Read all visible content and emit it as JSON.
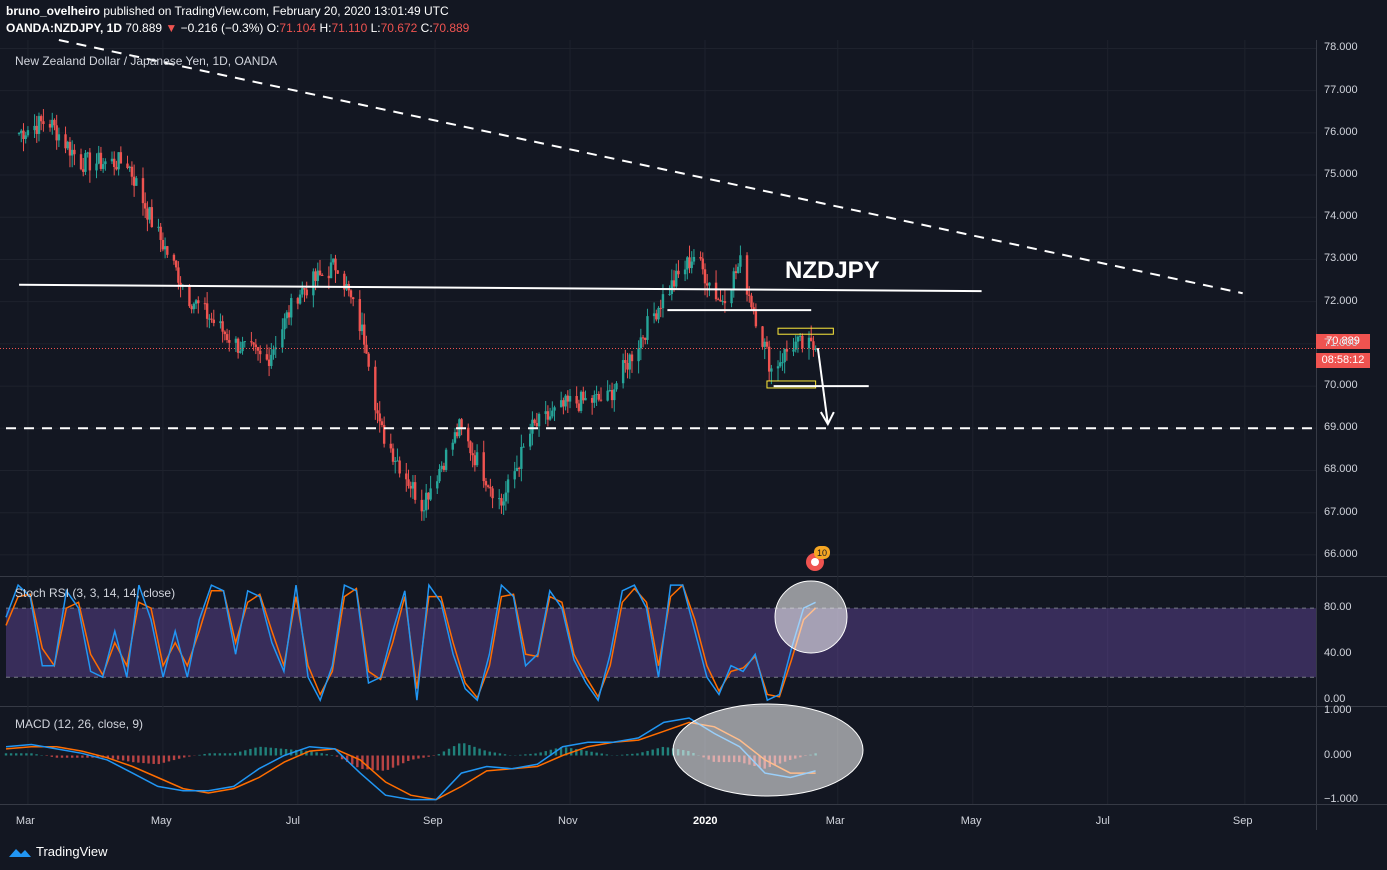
{
  "header": {
    "author": "bruno_ovelheiro",
    "published": "published on TradingView.com, February 20, 2020 13:01:49 UTC",
    "symbol": "OANDA:NZDJPY, 1D",
    "last": "70.889",
    "arrow": "▼",
    "change": "−0.216 (−0.3%)",
    "o_label": "O:",
    "o": "71.104",
    "h_label": "H:",
    "h": "71.110",
    "l_label": "L:",
    "l": "70.672",
    "c_label": "C:",
    "c": "70.889"
  },
  "main_title": "New Zealand Dollar / Japanese Yen, 1D, OANDA",
  "annotation": "NZDJPY",
  "price_tag": "70.889",
  "countdown_tag": "08:58:12",
  "event_badge": "10",
  "stoch_title": "Stoch RSI (3, 3, 14, 14, close)",
  "macd_title": "MACD (12, 26, close, 9)",
  "brand": "TradingView",
  "colors": {
    "bg": "#131722",
    "up": "#26a69a",
    "down": "#ef5350",
    "stoch_k": "#2196f3",
    "stoch_d": "#ff6d00",
    "stoch_band": "#7e57c2"
  },
  "chart_data": [
    {
      "type": "candlestick",
      "title": "New Zealand Dollar / Japanese Yen, 1D, OANDA",
      "ylim": [
        65.5,
        78.2
      ],
      "y_ticks": [
        "78.000",
        "77.000",
        "76.000",
        "75.000",
        "74.000",
        "73.000",
        "72.000",
        "71.000",
        "70.000",
        "69.000",
        "68.000",
        "67.000",
        "66.000"
      ],
      "x_ticks": [
        "Mar",
        "May",
        "Jul",
        "Sep",
        "Nov",
        "2020",
        "Mar",
        "May",
        "Jul",
        "Sep"
      ],
      "approx_daily_closes": [
        {
          "date": "2019-02-25",
          "value": 76.0
        },
        {
          "date": "2019-03-10",
          "value": 76.3
        },
        {
          "date": "2019-03-25",
          "value": 75.3
        },
        {
          "date": "2019-04-15",
          "value": 75.3
        },
        {
          "date": "2019-04-26",
          "value": 73.9
        },
        {
          "date": "2019-05-13",
          "value": 72.1
        },
        {
          "date": "2019-06-03",
          "value": 71.0
        },
        {
          "date": "2019-06-17",
          "value": 70.6
        },
        {
          "date": "2019-07-01",
          "value": 72.2
        },
        {
          "date": "2019-07-19",
          "value": 72.9
        },
        {
          "date": "2019-08-01",
          "value": 71.0
        },
        {
          "date": "2019-08-07",
          "value": 69.0
        },
        {
          "date": "2019-08-26",
          "value": 67.2
        },
        {
          "date": "2019-09-12",
          "value": 69.0
        },
        {
          "date": "2019-10-01",
          "value": 67.2
        },
        {
          "date": "2019-10-15",
          "value": 69.0
        },
        {
          "date": "2019-11-01",
          "value": 69.6
        },
        {
          "date": "2019-11-18",
          "value": 69.7
        },
        {
          "date": "2019-12-13",
          "value": 72.1
        },
        {
          "date": "2019-12-27",
          "value": 73.1
        },
        {
          "date": "2020-01-08",
          "value": 72.0
        },
        {
          "date": "2020-01-17",
          "value": 72.9
        },
        {
          "date": "2020-01-31",
          "value": 70.4
        },
        {
          "date": "2020-02-10",
          "value": 71.0
        },
        {
          "date": "2020-02-20",
          "value": 70.889
        }
      ],
      "annotations": [
        {
          "kind": "horizontal_dashed",
          "price": 69.0
        },
        {
          "kind": "descending_dashed_trendline",
          "from": {
            "date": "2019-03-15",
            "value": 78.2
          },
          "to": {
            "date": "2020-08-31",
            "value": 72.2
          }
        },
        {
          "kind": "trendline",
          "from": {
            "date": "2019-02-25",
            "value": 72.4
          },
          "to": {
            "date": "2020-05-05",
            "value": 72.25
          }
        },
        {
          "kind": "horizontal",
          "price": 71.8
        },
        {
          "kind": "box_range",
          "top": 71.3,
          "bottom": 70.05
        },
        {
          "kind": "arrow",
          "from": 70.9,
          "to": 69.1
        },
        {
          "kind": "last_price_line",
          "price": 70.889
        }
      ]
    },
    {
      "type": "line",
      "title": "Stoch RSI (3, 3, 14, 14, close)",
      "ylim": [
        -5,
        107
      ],
      "y_ticks": [
        "80.00",
        "40.00",
        "0.00"
      ],
      "bands": [
        80,
        20
      ],
      "series": [
        {
          "name": "K",
          "values": [
            72,
            100,
            90,
            30,
            30,
            95,
            80,
            25,
            20,
            60,
            20,
            100,
            70,
            20,
            60,
            20,
            70,
            100,
            95,
            40,
            95,
            90,
            50,
            25,
            100,
            20,
            0,
            30,
            100,
            95,
            15,
            20,
            60,
            95,
            0,
            100,
            85,
            40,
            10,
            0,
            40,
            100,
            90,
            30,
            40,
            95,
            80,
            35,
            15,
            0,
            40,
            95,
            100,
            80,
            20,
            100,
            100,
            60,
            20,
            5,
            30,
            25,
            40,
            0,
            5,
            45,
            80,
            85
          ]
        },
        {
          "name": "D",
          "values": [
            65,
            90,
            92,
            45,
            30,
            80,
            85,
            40,
            22,
            50,
            30,
            85,
            80,
            30,
            50,
            30,
            60,
            95,
            95,
            50,
            85,
            92,
            60,
            30,
            90,
            30,
            5,
            25,
            90,
            97,
            25,
            18,
            50,
            90,
            10,
            90,
            90,
            50,
            15,
            2,
            30,
            90,
            92,
            40,
            38,
            90,
            85,
            40,
            20,
            3,
            30,
            85,
            97,
            85,
            30,
            90,
            100,
            70,
            30,
            8,
            25,
            28,
            38,
            5,
            3,
            35,
            70,
            80
          ]
        }
      ]
    },
    {
      "type": "line",
      "title": "MACD (12, 26, close, 9)",
      "ylim": [
        -1.1,
        1.1
      ],
      "y_ticks": [
        "1.000",
        "0.000",
        "−1.000"
      ],
      "series": [
        {
          "name": "MACD",
          "values": [
            0.2,
            0.25,
            0.15,
            0.05,
            -0.1,
            -0.4,
            -0.7,
            -0.8,
            -0.8,
            -0.7,
            -0.3,
            0.0,
            0.2,
            0.15,
            -0.4,
            -0.9,
            -1.0,
            -1.0,
            -0.4,
            -0.25,
            -0.3,
            -0.2,
            0.2,
            0.3,
            0.3,
            0.4,
            0.75,
            0.85,
            0.5,
            0.2,
            -0.4,
            -0.5,
            -0.35
          ]
        },
        {
          "name": "Signal",
          "values": [
            0.15,
            0.2,
            0.2,
            0.1,
            -0.05,
            -0.25,
            -0.5,
            -0.75,
            -0.85,
            -0.75,
            -0.5,
            -0.15,
            0.1,
            0.15,
            -0.1,
            -0.6,
            -0.9,
            -1.0,
            -0.7,
            -0.35,
            -0.3,
            -0.25,
            0.0,
            0.2,
            0.3,
            0.35,
            0.55,
            0.75,
            0.65,
            0.35,
            -0.1,
            -0.4,
            -0.4
          ]
        },
        {
          "name": "Histogram",
          "values": [
            0.05,
            0.05,
            -0.05,
            -0.05,
            -0.05,
            -0.15,
            -0.2,
            -0.05,
            0.05,
            0.05,
            0.2,
            0.15,
            0.1,
            0.0,
            -0.3,
            -0.35,
            -0.1,
            0.0,
            0.3,
            0.1,
            0.0,
            0.05,
            0.2,
            0.1,
            0.0,
            0.05,
            0.2,
            0.1,
            -0.15,
            -0.15,
            -0.3,
            -0.1,
            0.05
          ]
        }
      ]
    }
  ]
}
